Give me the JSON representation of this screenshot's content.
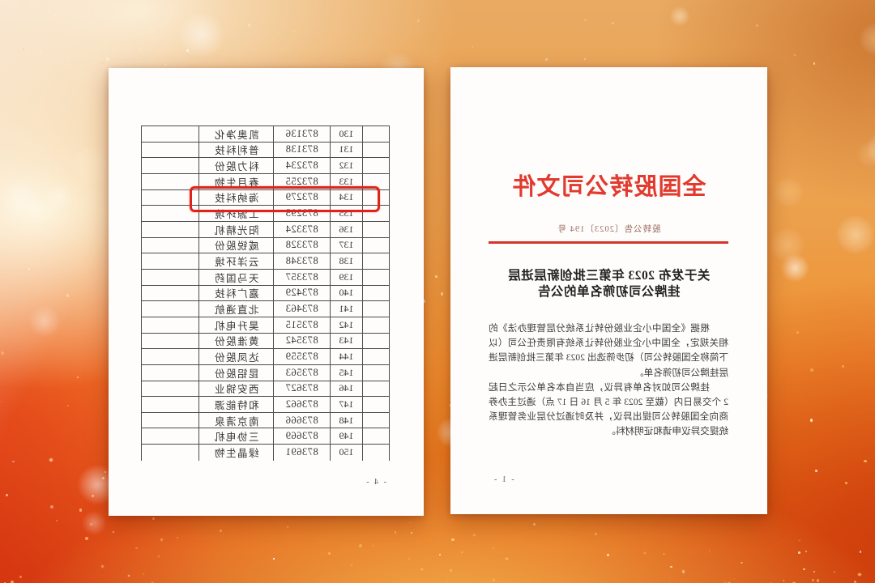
{
  "scene": {
    "description": "mirrored photo of two official documents on festive orange-gold sparkle background",
    "mirrored": true
  },
  "colors": {
    "letterhead_red": "#e23a2e",
    "rule_red": "#d5342b",
    "highlight_red": "#e0231a",
    "body_text": "#3d3d3d",
    "background_orange": "#ef8f30",
    "background_deep_red": "#d44c0e",
    "background_pale": "#fcf0dc",
    "sparkle_colors": [
      "#ffffff",
      "#ffeec2",
      "#ffd98e",
      "#ffc76a"
    ],
    "bokeh_colors": [
      "#ffffff",
      "#ffefcf",
      "#ffdf9e"
    ]
  },
  "decor": {
    "sparkle_count": 185,
    "top_sparkle_count": 30,
    "bokeh_count": 26
  },
  "title_page": {
    "letterhead": "全国股转公司文件",
    "doc_number": "股转公告〔2023〕194 号",
    "heading_line1": "关于发布 2023 年第三批创新层进层",
    "heading_line2": "挂牌公司初筛名单的公告",
    "para1": "根据《全国中小企业股份转让系统分层管理办法》的相关规定，全国中小企业股份转让系统有限责任公司（以下简称全国股转公司）初步筛选出 2023 年第三批创新层进层挂牌公司初筛名单。",
    "para2": "挂牌公司如对名单有异议，应当自本名单公示之日起 2 个交易日内（截至 2023 年 5 月 16 日 17 点）通过主办券商向全国股转公司提出异议，并及时通过分层业务管理系统提交异议申请和证明材料。",
    "page_number": "- 1 -"
  },
  "table_page": {
    "page_number": "- 4 -",
    "highlighted_no": "134",
    "rows": [
      {
        "no": "130",
        "code": "873136",
        "name": "凯奥净化"
      },
      {
        "no": "131",
        "code": "873138",
        "name": "普利科技"
      },
      {
        "no": "132",
        "code": "873234",
        "name": "科力股份"
      },
      {
        "no": "133",
        "code": "873255",
        "name": "春月生物"
      },
      {
        "no": "134",
        "code": "873279",
        "name": "海纳科技"
      },
      {
        "no": "135",
        "code": "873295",
        "name": "工源环境"
      },
      {
        "no": "136",
        "code": "873324",
        "name": "阳光精机"
      },
      {
        "no": "137",
        "code": "873328",
        "name": "威锐股份"
      },
      {
        "no": "138",
        "code": "873348",
        "name": "云洋环境"
      },
      {
        "no": "139",
        "code": "873357",
        "name": "天马国药"
      },
      {
        "no": "140",
        "code": "873429",
        "name": "嘉广科技"
      },
      {
        "no": "141",
        "code": "873463",
        "name": "北直通航"
      },
      {
        "no": "142",
        "code": "873515",
        "name": "昊升电机"
      },
      {
        "no": "143",
        "code": "873542",
        "name": "黄淮股份"
      },
      {
        "no": "144",
        "code": "873559",
        "name": "达凤股份"
      },
      {
        "no": "145",
        "code": "873563",
        "name": "昆铝股份"
      },
      {
        "no": "146",
        "code": "873627",
        "name": "西安锦业"
      },
      {
        "no": "147",
        "code": "873662",
        "name": "和特能源"
      },
      {
        "no": "148",
        "code": "873666",
        "name": "南京清泉"
      },
      {
        "no": "149",
        "code": "873669",
        "name": "三协电机"
      },
      {
        "no": "150",
        "code": "873691",
        "name": "绿晶生物"
      }
    ]
  }
}
